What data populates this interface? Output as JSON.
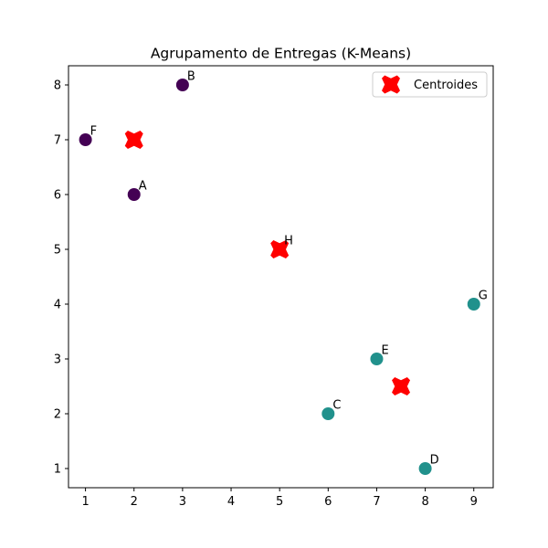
{
  "chart_data": {
    "type": "scatter",
    "title": "Agrupamento de Entregas (K-Means)",
    "xlabel": "",
    "ylabel": "",
    "xlim": [
      0.65,
      9.4
    ],
    "ylim": [
      0.65,
      8.35
    ],
    "xticks": [
      1,
      2,
      3,
      4,
      5,
      6,
      7,
      8,
      9
    ],
    "yticks": [
      1,
      2,
      3,
      4,
      5,
      6,
      7,
      8
    ],
    "grid": false,
    "legend": {
      "position": "top-right",
      "entries": [
        "Centroides"
      ]
    },
    "points": [
      {
        "label": "A",
        "x": 2,
        "y": 6,
        "cluster": 0
      },
      {
        "label": "B",
        "x": 3,
        "y": 8,
        "cluster": 0
      },
      {
        "label": "C",
        "x": 6,
        "y": 2,
        "cluster": 1
      },
      {
        "label": "D",
        "x": 8,
        "y": 1,
        "cluster": 1
      },
      {
        "label": "E",
        "x": 7,
        "y": 3,
        "cluster": 1
      },
      {
        "label": "F",
        "x": 1,
        "y": 7,
        "cluster": 0
      },
      {
        "label": "G",
        "x": 9,
        "y": 4,
        "cluster": 1
      },
      {
        "label": "H",
        "x": 5,
        "y": 5,
        "cluster": 2
      }
    ],
    "cluster_colors": [
      "#440154",
      "#21918c",
      "#fde725"
    ],
    "centroids": {
      "name": "Centroides",
      "color": "#ff0000",
      "marker": "X",
      "points": [
        {
          "x": 2,
          "y": 7
        },
        {
          "x": 5,
          "y": 5
        },
        {
          "x": 7.5,
          "y": 2.5
        }
      ]
    }
  }
}
